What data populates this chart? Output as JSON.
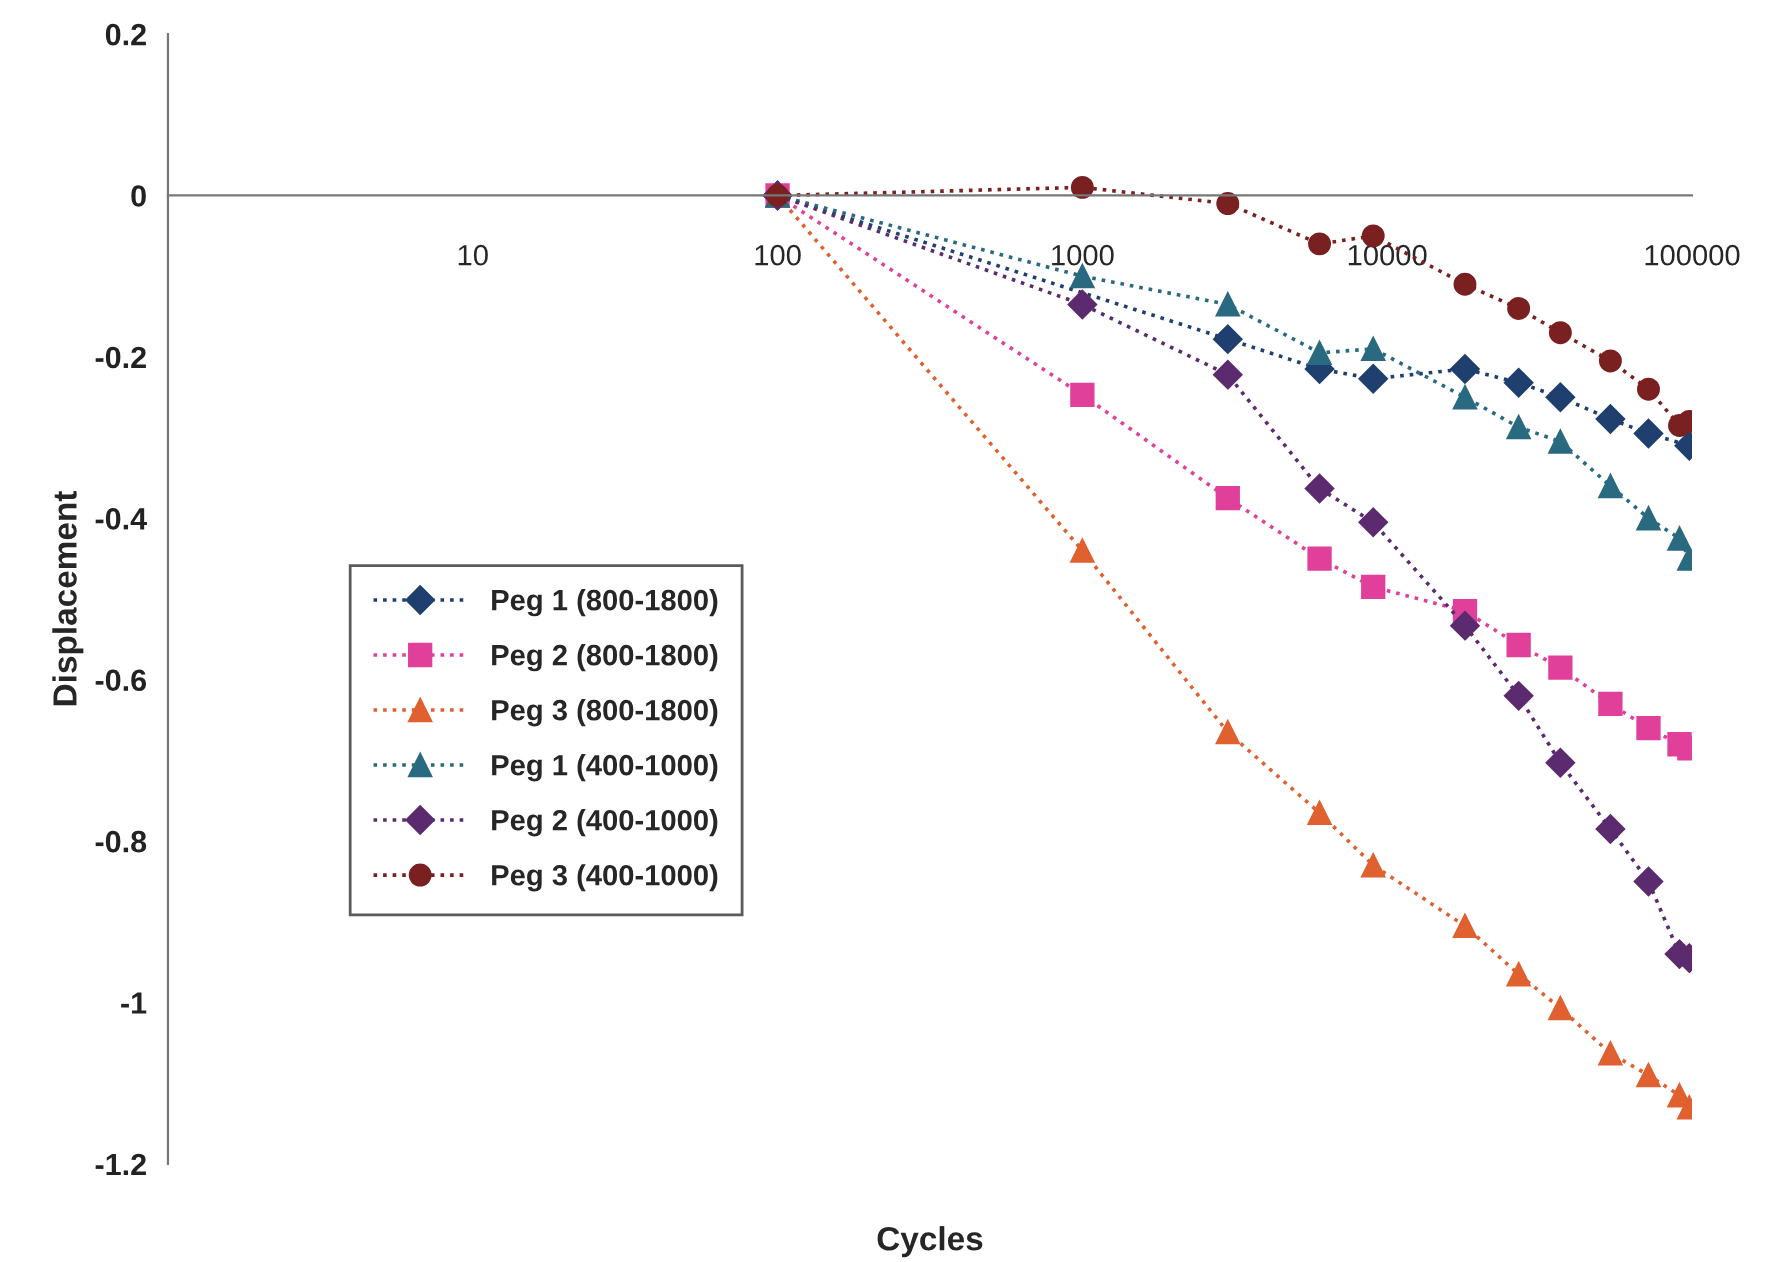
{
  "chart_data": {
    "type": "line",
    "xlabel": "Cycles",
    "ylabel": "Displacement",
    "log": "x",
    "x": [
      100,
      1000,
      3000,
      6000,
      9000,
      18000,
      27000,
      37000,
      54000,
      72000,
      91000,
      98000
    ],
    "xlim": [
      1,
      100000
    ],
    "xticks": [
      {
        "value": 1,
        "label": null
      },
      10,
      100,
      1000,
      10000,
      100000
    ],
    "ylim": [
      -1.2,
      0.2
    ],
    "yticks": [
      {
        "value": -1.2,
        "label": "-1.2"
      },
      {
        "value": -1,
        "label": "-1"
      },
      {
        "value": -0.8,
        "label": "-0.8"
      },
      {
        "value": -0.6,
        "label": "-0.6"
      },
      {
        "value": -0.4,
        "label": "-0.4"
      },
      {
        "value": -0.2,
        "label": "-0.2"
      },
      {
        "value": 0,
        "label": "0"
      },
      {
        "value": 0.2,
        "label": "0.2"
      }
    ],
    "grid": false,
    "legend": "left",
    "line_style": "dotted",
    "series": [
      {
        "name": "Peg 1 (800-1800)",
        "color": "#1f3f6e",
        "marker": "diamond",
        "values": [
          0,
          null,
          -0.178,
          -0.215,
          -0.227,
          -0.215,
          -0.232,
          -0.25,
          -0.277,
          -0.295,
          null,
          -0.31
        ]
      },
      {
        "name": "Peg 2 (800-1800)",
        "color": "#e0409a",
        "marker": "square",
        "values": [
          0,
          -0.247,
          -0.375,
          -0.45,
          -0.485,
          -0.515,
          -0.557,
          -0.585,
          -0.63,
          -0.66,
          -0.68,
          -0.685
        ]
      },
      {
        "name": "Peg 3 (800-1800)",
        "color": "#e06030",
        "marker": "triangle",
        "values": [
          0,
          -0.44,
          -0.665,
          -0.765,
          -0.83,
          -0.905,
          -0.965,
          -1.007,
          -1.063,
          -1.09,
          -1.115,
          -1.13
        ]
      },
      {
        "name": "Peg 1 (400-1000)",
        "color": "#2a6a80",
        "marker": "triangle",
        "values": [
          0,
          -0.1,
          -0.135,
          -0.195,
          -0.19,
          -0.25,
          -0.287,
          -0.305,
          -0.36,
          -0.4,
          -0.425,
          -0.45
        ]
      },
      {
        "name": "Peg 2 (400-1000)",
        "color": "#5c2a6e",
        "marker": "diamond",
        "values": [
          0,
          -0.135,
          -0.222,
          -0.363,
          -0.405,
          -0.533,
          -0.62,
          -0.703,
          -0.785,
          -0.85,
          -0.94,
          -0.945
        ]
      },
      {
        "name": "Peg 3 (400-1000)",
        "color": "#7a2020",
        "marker": "circle",
        "values": [
          0,
          0.01,
          -0.01,
          -0.06,
          -0.05,
          -0.11,
          -0.14,
          -0.17,
          -0.205,
          -0.24,
          -0.285,
          -0.28
        ]
      }
    ]
  }
}
